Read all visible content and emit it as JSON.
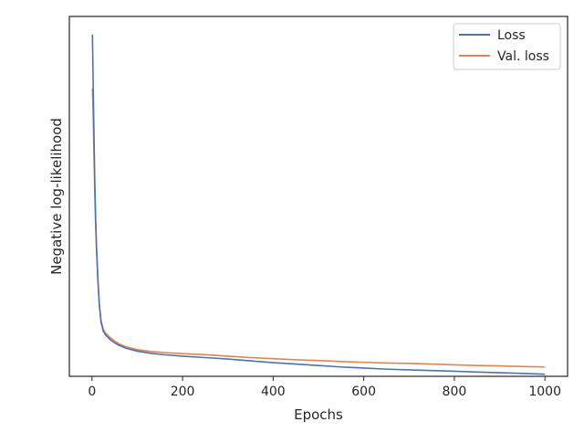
{
  "chart_data": {
    "type": "line",
    "xlabel": "Epochs",
    "ylabel": "Negative log-likelihood",
    "title": "",
    "xlim": [
      -50,
      1050
    ],
    "ylim": [
      0,
      100
    ],
    "x_ticks": [
      0,
      200,
      400,
      600,
      800,
      1000
    ],
    "x_tick_labels": [
      "0",
      "200",
      "400",
      "600",
      "800",
      "1000"
    ],
    "y_ticks_labeled": false,
    "grid": false,
    "legend_position": "top-right",
    "series": [
      {
        "name": "Loss",
        "color": "#4c72b0",
        "x": [
          1,
          2,
          4,
          6,
          8,
          10,
          13,
          16,
          20,
          25,
          30,
          40,
          50,
          60,
          75,
          100,
          130,
          160,
          200,
          250,
          300,
          350,
          400,
          450,
          500,
          550,
          600,
          650,
          700,
          750,
          800,
          850,
          900,
          950,
          1000
        ],
        "values": [
          95.0,
          86.0,
          70.0,
          55.0,
          44.0,
          36.0,
          27.0,
          20.0,
          15.0,
          12.5,
          11.5,
          10.2,
          9.3,
          8.6,
          7.8,
          7.0,
          6.4,
          6.0,
          5.6,
          5.2,
          4.8,
          4.3,
          3.8,
          3.4,
          3.0,
          2.6,
          2.3,
          2.0,
          1.8,
          1.6,
          1.4,
          1.2,
          1.0,
          0.8,
          0.6
        ]
      },
      {
        "name": "Val. loss",
        "color": "#dd8452",
        "x": [
          1,
          2,
          4,
          6,
          8,
          10,
          13,
          16,
          20,
          25,
          30,
          40,
          50,
          60,
          75,
          100,
          130,
          160,
          200,
          250,
          300,
          350,
          400,
          450,
          500,
          550,
          600,
          650,
          700,
          750,
          800,
          850,
          900,
          950,
          1000
        ],
        "values": [
          80.0,
          76.0,
          64.0,
          52.0,
          42.0,
          35.0,
          27.0,
          20.5,
          15.5,
          13.0,
          12.0,
          10.8,
          9.8,
          9.0,
          8.2,
          7.4,
          6.9,
          6.6,
          6.3,
          6.0,
          5.6,
          5.2,
          4.9,
          4.6,
          4.4,
          4.1,
          3.9,
          3.7,
          3.6,
          3.4,
          3.2,
          3.0,
          2.9,
          2.7,
          2.6
        ]
      }
    ]
  }
}
